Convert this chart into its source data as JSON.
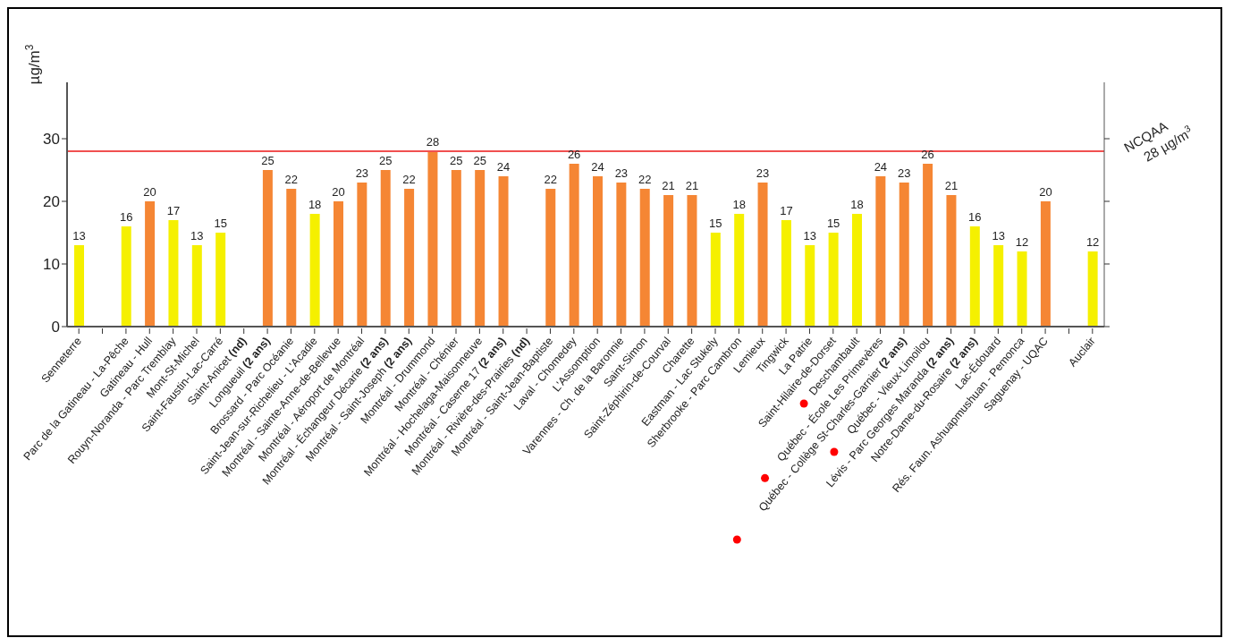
{
  "chart_data": {
    "type": "bar",
    "ylabel": "µg/m$^{3}$",
    "categories": [
      "Senneterre",
      null,
      "Parc de la Gatineau - La-Pêche",
      "Gatineau - Hull",
      "Rouyn-Noranda - Parc Tremblay",
      "Mont-St-Michel",
      "Saint-Faustin-Lac-Carré",
      "Saint-Anicet (nd)",
      "Longueuil (2 ans)",
      "Brossard - Parc Océanie",
      "Saint-Jean-sur-Richelieu - L'Acadie",
      "Montréal - Sainte-Anne-de-Bellevue",
      "Montréal - Aéroport de Montréal",
      "Montréal - Échangeur Décarie (2 ans)",
      "Montréal - Saint-Joseph (2 ans)",
      "Montréal - Drummond",
      "Montréal - Chénier",
      "Montréal - Hochelaga-Maisonneuve",
      "Montréal - Caserne 17 (2 ans)",
      "Montréal - Rivière-des-Prairies (nd)",
      "Montréal - Saint-Jean-Baptiste",
      "Laval - Chomedey",
      "L'Assomption",
      "Varennes - Ch. de la Baronnie",
      "Saint-Simon",
      "Saint-Zéphirin-de-Courval",
      "Charette",
      "Eastman - Lac Stukely",
      "Sherbrooke - Parc Cambron",
      "Lemieux",
      "Tingwick",
      "La Patrie",
      "Saint-Hilaire-de-Dorset",
      "Deschambault",
      "Québec - École Les Primevères",
      "Québec - Collège St-Charles-Garnier (2 ans)",
      "Québec - Vieux-Limoilou",
      "Lévis - Parc Georges Maranda (2 ans)",
      "Notre-Dame-du-Rosaire (2 ans)",
      "Lac-Édouard",
      "Rés. Faun. Ashuapmushuan - Pemonca",
      "Saguenay - UQAC",
      null,
      "Auclair"
    ],
    "values": [
      13,
      null,
      16,
      20,
      17,
      13,
      15,
      null,
      25,
      22,
      18,
      20,
      23,
      25,
      22,
      28,
      25,
      25,
      24,
      null,
      22,
      26,
      24,
      23,
      22,
      21,
      21,
      15,
      18,
      23,
      17,
      13,
      15,
      18,
      24,
      23,
      26,
      21,
      16,
      13,
      12,
      20,
      null,
      12
    ],
    "colors": [
      "#f5f000",
      null,
      "#f5f000",
      "#f58634",
      "#f5f000",
      "#f5f000",
      "#f5f000",
      null,
      "#f58634",
      "#f58634",
      "#f5f000",
      "#f58634",
      "#f58634",
      "#f58634",
      "#f58634",
      "#f58634",
      "#f58634",
      "#f58634",
      "#f58634",
      null,
      "#f58634",
      "#f58634",
      "#f58634",
      "#f58634",
      "#f58634",
      "#f58634",
      "#f58634",
      "#f5f000",
      "#f5f000",
      "#f58634",
      "#f5f000",
      "#f5f000",
      "#f5f000",
      "#f5f000",
      "#f58634",
      "#f58634",
      "#f58634",
      "#f58634",
      "#f5f000",
      "#f5f000",
      "#f5f000",
      "#f58634",
      null,
      "#f5f000"
    ],
    "ylim": [
      0,
      39
    ],
    "yticks": [
      0,
      10,
      20,
      30
    ],
    "grid": false,
    "legend": false,
    "data_labels": true,
    "ref_lines": [
      {
        "axis": "y",
        "value": 28,
        "label": "NCQAA 28 µg/m$^{3}$",
        "color": "#f05050"
      }
    ]
  }
}
